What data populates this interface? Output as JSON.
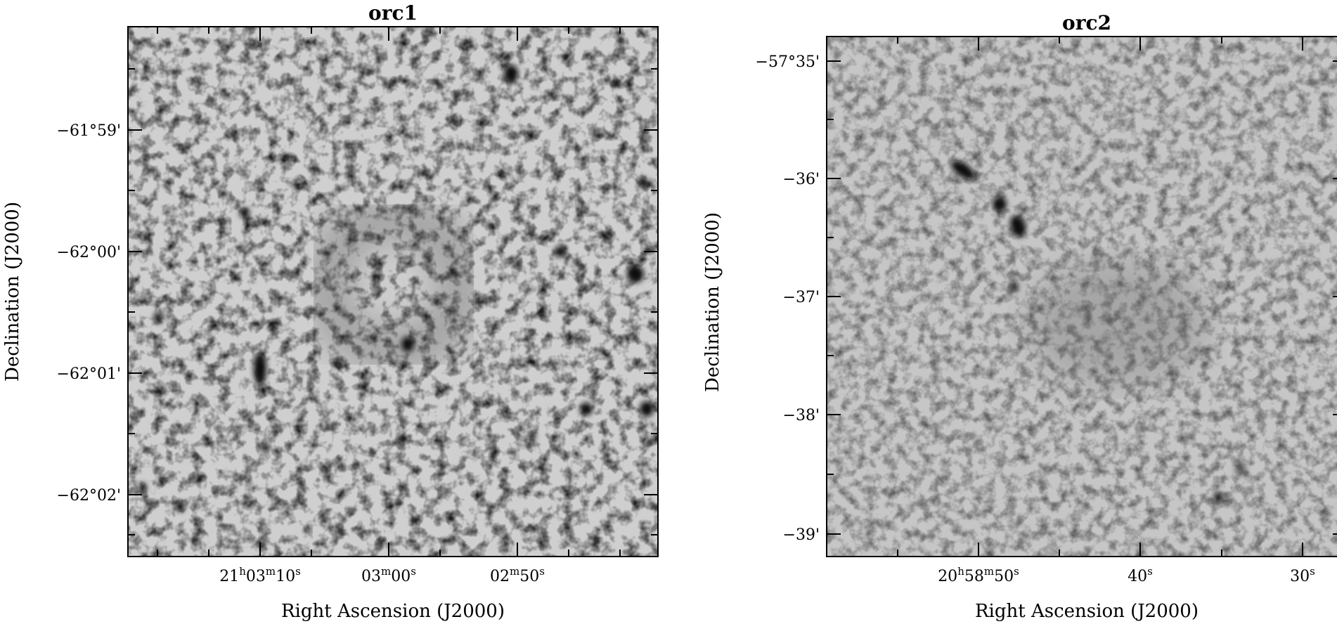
{
  "panels": [
    {
      "title": "orc1",
      "xlabel": "Right Ascension (J2000)",
      "ylabel": "Declination (J2000)",
      "yticks": [
        "−61°59'",
        "−62°00'",
        "−62°01'",
        "−62°02'"
      ],
      "xticks": [
        {
          "h": "21",
          "m": "03",
          "s": "10"
        },
        {
          "h": "",
          "m": "03",
          "s": "00"
        },
        {
          "h": "",
          "m": "02",
          "s": "50"
        }
      ],
      "image": {
        "colormap": "grayscale-inverted",
        "background": "#c9c9c9",
        "source_color": "#0a0a0a"
      }
    },
    {
      "title": "orc2",
      "xlabel": "Right Ascension (J2000)",
      "ylabel": "Declination (J2000)",
      "yticks": [
        "−57°35'",
        "−36'",
        "−37'",
        "−38'",
        "−39'"
      ],
      "xticks": [
        {
          "h": "20",
          "m": "58",
          "s": "50"
        },
        {
          "h": "",
          "m": "",
          "s": "40"
        },
        {
          "h": "",
          "m": "",
          "s": "30"
        }
      ],
      "image": {
        "colormap": "grayscale-inverted",
        "background": "#c4c4c4",
        "source_color": "#0a0a0a"
      }
    }
  ]
}
